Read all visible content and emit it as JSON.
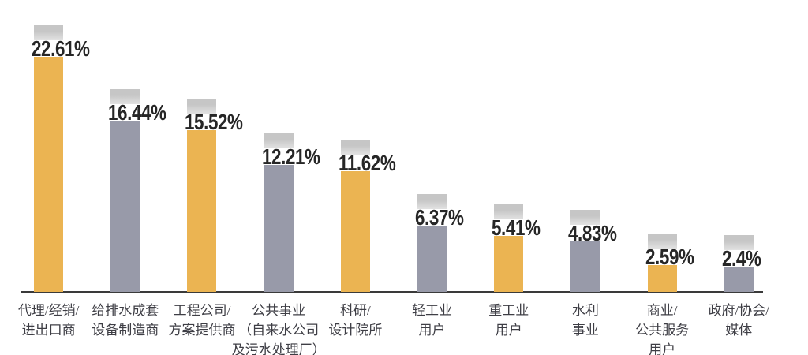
{
  "chart_data": {
    "type": "bar",
    "title": "",
    "xlabel": "",
    "ylabel": "",
    "value_unit": "%",
    "grid": false,
    "legend": false,
    "x_axis_line": true,
    "y_axis_visible": false,
    "categories": [
      "代理/经销/进出口商",
      "给排水成套设备制造商",
      "工程公司/方案提供商",
      "公共事业（自来水公司及污水处理厂）",
      "科研/设计院所",
      "轻工业用户",
      "重工业用户",
      "水利事业",
      "商业/公共服务用户",
      "政府/协会/媒体"
    ],
    "values": [
      22.61,
      16.44,
      15.52,
      12.21,
      11.62,
      6.37,
      5.41,
      4.83,
      2.59,
      2.4
    ],
    "bars": [
      {
        "category_lines": [
          "代理/经销/",
          "进出口商"
        ],
        "value": 22.61,
        "label": "22.61%",
        "color": "gold"
      },
      {
        "category_lines": [
          "给排水成套",
          "设备制造商"
        ],
        "value": 16.44,
        "label": "16.44%",
        "color": "slate"
      },
      {
        "category_lines": [
          "工程公司/",
          "方案提供商"
        ],
        "value": 15.52,
        "label": "15.52%",
        "color": "gold"
      },
      {
        "category_lines": [
          "公共事业",
          "（自来水公司",
          "及污水处理厂）"
        ],
        "value": 12.21,
        "label": "12.21%",
        "color": "slate"
      },
      {
        "category_lines": [
          "科研/",
          "设计院所"
        ],
        "value": 11.62,
        "label": "11.62%",
        "color": "gold"
      },
      {
        "category_lines": [
          "轻工业",
          "用户"
        ],
        "value": 6.37,
        "label": "6.37%",
        "color": "slate"
      },
      {
        "category_lines": [
          "重工业",
          "用户"
        ],
        "value": 5.41,
        "label": "5.41%",
        "color": "gold"
      },
      {
        "category_lines": [
          "水利",
          "事业"
        ],
        "value": 4.83,
        "label": "4.83%",
        "color": "slate"
      },
      {
        "category_lines": [
          "商业/",
          "公共服务",
          "用户"
        ],
        "value": 2.59,
        "label": "2.59%",
        "color": "gold"
      },
      {
        "category_lines": [
          "政府/协会/",
          "媒体"
        ],
        "value": 2.4,
        "label": "2.4%",
        "color": "slate"
      }
    ],
    "colors": {
      "gold": "#EBB452",
      "slate": "#989AA9",
      "cap_top": "#C6C6C6",
      "cap_bottom": "#E2E2E2",
      "axis": "#3A3A3A",
      "value_text": "#262626",
      "category_text": "#3E3E45",
      "background": "#FFFFFF"
    }
  }
}
